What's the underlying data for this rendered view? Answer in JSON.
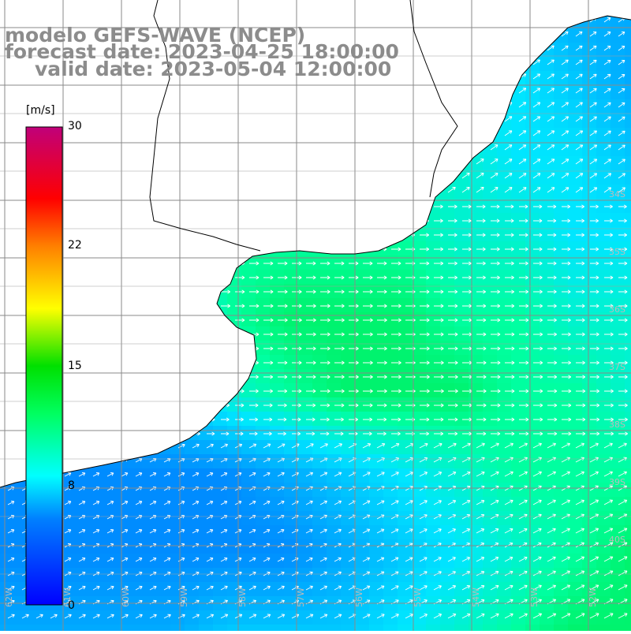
{
  "title": {
    "model": "modelo GEFS-WAVE (NCEP)",
    "forecast": "forecast date: 2023-04-25 18:00:00",
    "valid": "valid date: 2023-05-04 12:00:00"
  },
  "colorbar": {
    "unit": "[m/s]",
    "ticks": [
      "30",
      "22",
      "15",
      "8",
      "0"
    ],
    "tick_values": [
      30,
      22,
      15,
      8,
      0
    ],
    "range": [
      0,
      30
    ],
    "colors": [
      "#0000ff",
      "#00a0ff",
      "#00ffff",
      "#00e000",
      "#ffff00",
      "#ff8000",
      "#ff0000",
      "#c0006a"
    ]
  },
  "map": {
    "land_color": "#ffffff",
    "coast_color": "#000000",
    "grid_color": "#888888",
    "lat_labels": [
      "34S",
      "35S",
      "36S",
      "37S",
      "38S",
      "39S",
      "40S"
    ],
    "lon_labels": [
      "62W",
      "61W",
      "60W",
      "59W",
      "58W",
      "57W",
      "56W",
      "55W",
      "54W",
      "53W",
      "52W"
    ],
    "speed_field_ms": [
      [
        7,
        7,
        7,
        7,
        7,
        7,
        7,
        7,
        7,
        7,
        6,
        6
      ],
      [
        6,
        6,
        6,
        7,
        7,
        7,
        8,
        8,
        8,
        8,
        7,
        6
      ],
      [
        6,
        6,
        7,
        8,
        8,
        9,
        9,
        9,
        9,
        8,
        8,
        7
      ],
      [
        5,
        6,
        7,
        9,
        10,
        10,
        10,
        10,
        9,
        9,
        8,
        8
      ],
      [
        5,
        6,
        6,
        8,
        10,
        11,
        11,
        11,
        10,
        10,
        9,
        9
      ],
      [
        5,
        5,
        6,
        7,
        9,
        10,
        11,
        11,
        11,
        10,
        10,
        9
      ],
      [
        5,
        5,
        5,
        5,
        5,
        6,
        7,
        8,
        9,
        10,
        10,
        10
      ],
      [
        5,
        5,
        5,
        5,
        5,
        5,
        6,
        7,
        8,
        9,
        10,
        11
      ],
      [
        6,
        6,
        6,
        6,
        7,
        7,
        7,
        8,
        9,
        10,
        11,
        11
      ]
    ]
  }
}
